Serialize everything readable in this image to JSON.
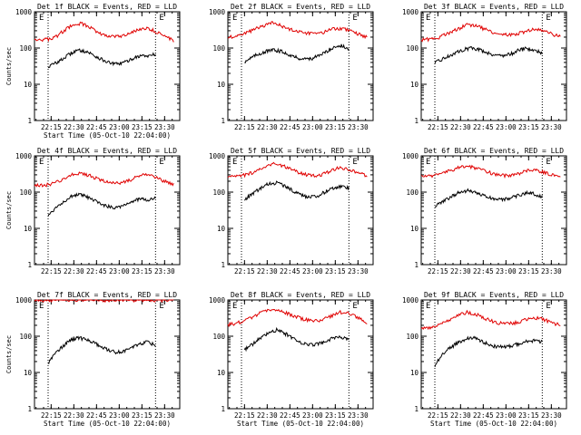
{
  "colors": {
    "events": "#000000",
    "lld": "#e00000",
    "axis": "#000000",
    "background": "#ffffff"
  },
  "chart_data": [
    {
      "type": "line",
      "title": "Det 1f BLACK = Events, RED = LLD",
      "xlabel": "Start Time (05-Oct-10 22:04:00)",
      "ylabel": "Counts/sec",
      "yscale": "log",
      "ylim": [
        1,
        1000
      ],
      "y_ticks": [
        "1",
        "10",
        "100",
        "1000"
      ],
      "x_ticks": [
        "22:15",
        "22:30",
        "22:45",
        "23:00",
        "23:15",
        "23:30"
      ],
      "marker_label": "E",
      "show_ylabel": true,
      "show_xlabel": true,
      "series": [
        {
          "name": "BLACK = Events",
          "color": "#000000",
          "start": "22:13",
          "end": "23:24",
          "values": [
            30,
            38,
            47,
            64,
            82,
            87,
            76,
            60,
            48,
            40,
            36,
            38,
            45,
            56,
            62,
            60,
            68
          ]
        },
        {
          "name": "RED = LLD",
          "color": "#e00000",
          "start": "22:04",
          "end": "23:36",
          "values": [
            180,
            170,
            175,
            220,
            320,
            430,
            480,
            390,
            290,
            230,
            210,
            205,
            230,
            300,
            350,
            330,
            265,
            205,
            160
          ]
        }
      ]
    },
    {
      "type": "line",
      "title": "Det 2f BLACK = Events, RED = LLD",
      "xlabel": "",
      "ylabel": "",
      "yscale": "log",
      "ylim": [
        1,
        1000
      ],
      "y_ticks": [
        "1",
        "10",
        "100",
        "1000"
      ],
      "x_ticks": [
        "22:15",
        "22:30",
        "22:45",
        "23:00",
        "23:15",
        "23:30"
      ],
      "marker_label": "E",
      "show_ylabel": false,
      "show_xlabel": false,
      "series": [
        {
          "name": "BLACK = Events",
          "color": "#000000",
          "start": "22:15",
          "end": "23:24",
          "values": [
            42,
            55,
            70,
            82,
            88,
            80,
            66,
            54,
            50,
            52,
            60,
            80,
            108,
            116,
            90
          ]
        },
        {
          "name": "RED = LLD",
          "color": "#e00000",
          "start": "22:04",
          "end": "23:36",
          "values": [
            200,
            220,
            265,
            320,
            410,
            490,
            420,
            340,
            290,
            260,
            255,
            270,
            330,
            350,
            300,
            240,
            205
          ]
        }
      ]
    },
    {
      "type": "line",
      "title": "Det 3f BLACK = Events, RED = LLD",
      "xlabel": "",
      "ylabel": "",
      "yscale": "log",
      "ylim": [
        1,
        1000
      ],
      "y_ticks": [
        "1",
        "10",
        "100",
        "1000"
      ],
      "x_ticks": [
        "22:15",
        "22:30",
        "22:45",
        "23:00",
        "23:15",
        "23:30"
      ],
      "marker_label": "E",
      "show_ylabel": false,
      "show_xlabel": false,
      "series": [
        {
          "name": "BLACK = Events",
          "color": "#000000",
          "start": "22:13",
          "end": "23:24",
          "values": [
            38,
            50,
            62,
            78,
            95,
            100,
            88,
            72,
            64,
            62,
            70,
            90,
            98,
            85,
            75
          ]
        },
        {
          "name": "RED = LLD",
          "color": "#e00000",
          "start": "22:04",
          "end": "23:36",
          "values": [
            170,
            175,
            200,
            255,
            340,
            440,
            400,
            320,
            260,
            230,
            235,
            275,
            330,
            310,
            250,
            200
          ]
        }
      ]
    },
    {
      "type": "line",
      "title": "Det 4f BLACK = Events, RED = LLD",
      "xlabel": "",
      "ylabel": "Counts/sec",
      "yscale": "log",
      "ylim": [
        1,
        1000
      ],
      "y_ticks": [
        "1",
        "10",
        "100",
        "1000"
      ],
      "x_ticks": [
        "22:15",
        "22:30",
        "22:45",
        "23:00",
        "23:15",
        "23:30"
      ],
      "marker_label": "E",
      "show_ylabel": true,
      "show_xlabel": false,
      "series": [
        {
          "name": "BLACK = Events",
          "color": "#000000",
          "start": "22:13",
          "end": "23:24",
          "values": [
            22,
            36,
            52,
            72,
            85,
            80,
            64,
            52,
            42,
            38,
            40,
            48,
            58,
            66,
            60,
            70
          ]
        },
        {
          "name": "RED = LLD",
          "color": "#e00000",
          "start": "22:04",
          "end": "23:36",
          "values": [
            150,
            155,
            170,
            220,
            300,
            340,
            280,
            220,
            190,
            180,
            200,
            260,
            320,
            260,
            200,
            160
          ]
        }
      ]
    },
    {
      "type": "line",
      "title": "Det 5f BLACK = Events, RED = LLD",
      "xlabel": "",
      "ylabel": "",
      "yscale": "log",
      "ylim": [
        1,
        1000
      ],
      "y_ticks": [
        "1",
        "10",
        "100",
        "1000"
      ],
      "x_ticks": [
        "22:15",
        "22:30",
        "22:45",
        "23:00",
        "23:15",
        "23:30"
      ],
      "marker_label": "E",
      "show_ylabel": false,
      "show_xlabel": false,
      "series": [
        {
          "name": "BLACK = Events",
          "color": "#000000",
          "start": "22:15",
          "end": "23:24",
          "values": [
            60,
            90,
            125,
            170,
            180,
            150,
            110,
            85,
            72,
            78,
            100,
            130,
            145,
            135
          ]
        },
        {
          "name": "RED = LLD",
          "color": "#e00000",
          "start": "22:04",
          "end": "23:36",
          "values": [
            260,
            270,
            300,
            380,
            520,
            600,
            520,
            400,
            320,
            290,
            300,
            370,
            470,
            430,
            340,
            280
          ]
        }
      ]
    },
    {
      "type": "line",
      "title": "Det 6f BLACK = Events, RED = LLD",
      "xlabel": "",
      "ylabel": "",
      "yscale": "log",
      "ylim": [
        1,
        1000
      ],
      "y_ticks": [
        "1",
        "10",
        "100",
        "1000"
      ],
      "x_ticks": [
        "22:15",
        "22:30",
        "22:45",
        "23:00",
        "23:15",
        "23:30"
      ],
      "marker_label": "E",
      "show_ylabel": false,
      "show_xlabel": false,
      "series": [
        {
          "name": "BLACK = Events",
          "color": "#000000",
          "start": "22:13",
          "end": "23:24",
          "values": [
            40,
            55,
            75,
            100,
            110,
            95,
            78,
            66,
            62,
            66,
            80,
            95,
            90,
            75
          ]
        },
        {
          "name": "RED = LLD",
          "color": "#e00000",
          "start": "22:04",
          "end": "23:36",
          "values": [
            290,
            280,
            300,
            380,
            470,
            520,
            460,
            370,
            310,
            290,
            300,
            360,
            420,
            370,
            300,
            260
          ]
        }
      ]
    },
    {
      "type": "line",
      "title": "Det 7f BLACK = Events, RED = LLD",
      "xlabel": "Start Time (05-Oct-10 22:04:00)",
      "ylabel": "Counts/sec",
      "yscale": "log",
      "ylim": [
        1,
        1000
      ],
      "y_ticks": [
        "1",
        "10",
        "100",
        "1000"
      ],
      "x_ticks": [
        "22:15",
        "22:30",
        "22:45",
        "23:00",
        "23:15",
        "23:30"
      ],
      "marker_label": "E",
      "show_ylabel": true,
      "show_xlabel": true,
      "series": [
        {
          "name": "BLACK = Events",
          "color": "#000000",
          "start": "22:13",
          "end": "23:24",
          "values": [
            18,
            35,
            55,
            78,
            90,
            82,
            65,
            50,
            40,
            36,
            40,
            50,
            62,
            70,
            55
          ]
        },
        {
          "name": "RED = LLD",
          "color": "#e00000",
          "start": "22:04",
          "end": "23:36",
          "values": [
            1000,
            980,
            1000,
            1020,
            990,
            1000,
            1010,
            980,
            1000,
            1020,
            990,
            1000,
            1010,
            990,
            1000,
            1000
          ]
        }
      ]
    },
    {
      "type": "line",
      "title": "Det 8f BLACK = Events, RED = LLD",
      "xlabel": "Start Time (05-Oct-10 22:04:00)",
      "ylabel": "",
      "yscale": "log",
      "ylim": [
        1,
        1000
      ],
      "y_ticks": [
        "1",
        "10",
        "100",
        "1000"
      ],
      "x_ticks": [
        "22:15",
        "22:30",
        "22:45",
        "23:00",
        "23:15",
        "23:30"
      ],
      "marker_label": "E",
      "show_ylabel": false,
      "show_xlabel": true,
      "series": [
        {
          "name": "BLACK = Events",
          "color": "#000000",
          "start": "22:15",
          "end": "23:24",
          "values": [
            42,
            60,
            88,
            120,
            150,
            120,
            90,
            68,
            58,
            60,
            72,
            88,
            92,
            80
          ]
        },
        {
          "name": "RED = LLD",
          "color": "#e00000",
          "start": "22:04",
          "end": "23:36",
          "values": [
            210,
            230,
            280,
            360,
            520,
            550,
            470,
            370,
            300,
            270,
            280,
            340,
            460,
            420,
            320,
            240
          ]
        }
      ]
    },
    {
      "type": "line",
      "title": "Det 9f BLACK = Events, RED = LLD",
      "xlabel": "Start Time (05-Oct-10 22:04:00)",
      "ylabel": "",
      "yscale": "log",
      "ylim": [
        1,
        1000
      ],
      "y_ticks": [
        "1",
        "10",
        "100",
        "1000"
      ],
      "x_ticks": [
        "22:15",
        "22:30",
        "22:45",
        "23:00",
        "23:15",
        "23:30"
      ],
      "marker_label": "E",
      "show_ylabel": false,
      "show_xlabel": true,
      "series": [
        {
          "name": "BLACK = Events",
          "color": "#000000",
          "start": "22:13",
          "end": "23:24",
          "values": [
            14,
            32,
            48,
            65,
            85,
            90,
            75,
            58,
            52,
            50,
            55,
            62,
            72,
            76,
            70
          ]
        },
        {
          "name": "RED = LLD",
          "color": "#e00000",
          "start": "22:04",
          "end": "23:36",
          "values": [
            160,
            170,
            200,
            280,
            390,
            460,
            390,
            300,
            240,
            220,
            230,
            270,
            320,
            300,
            240,
            200
          ]
        }
      ]
    }
  ]
}
